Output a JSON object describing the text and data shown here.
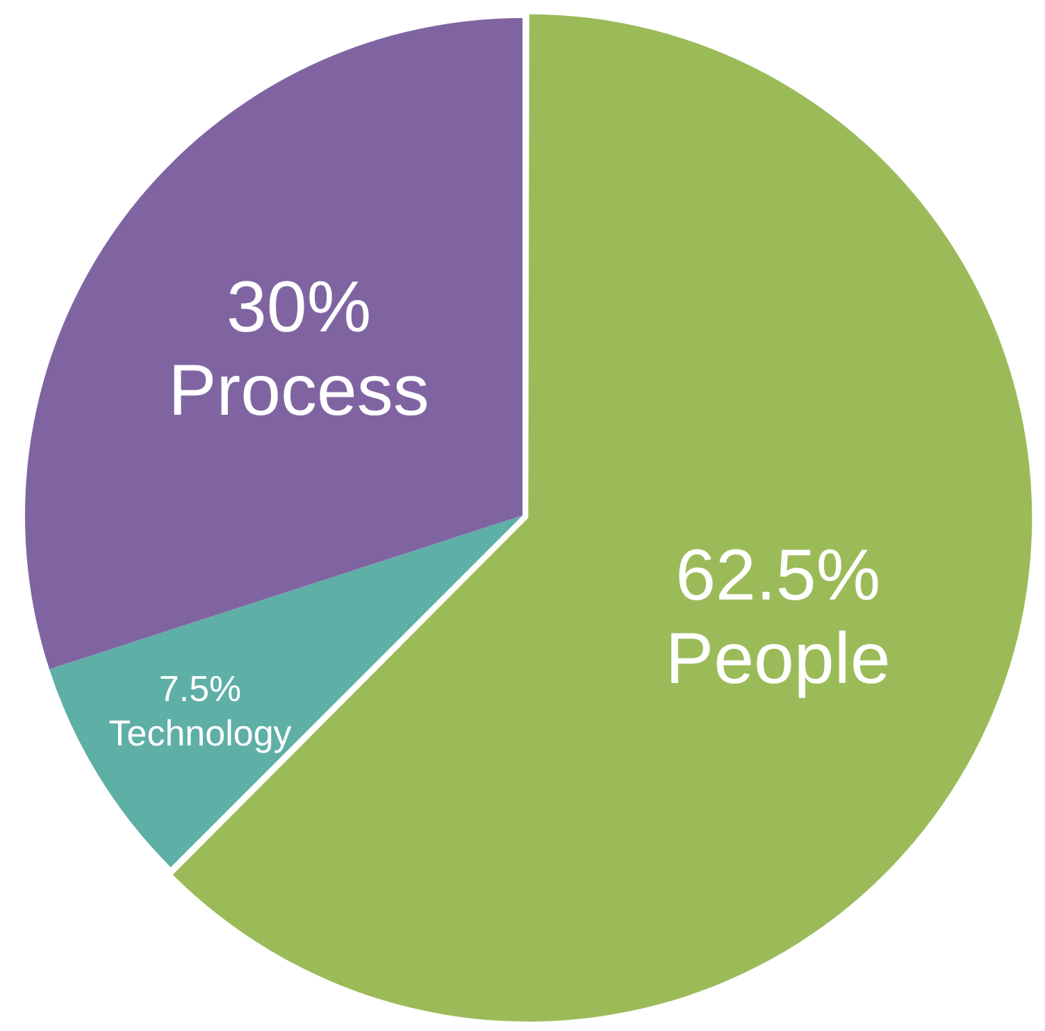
{
  "chart_data": {
    "type": "pie",
    "categories": [
      "People",
      "Technology",
      "Process"
    ],
    "values": [
      62.5,
      7.5,
      30
    ],
    "colors": [
      "#9bbb59",
      "#5eafa6",
      "#8064a2"
    ],
    "value_labels": [
      "62.5%",
      "7.5%",
      "30%"
    ],
    "legend": false
  }
}
